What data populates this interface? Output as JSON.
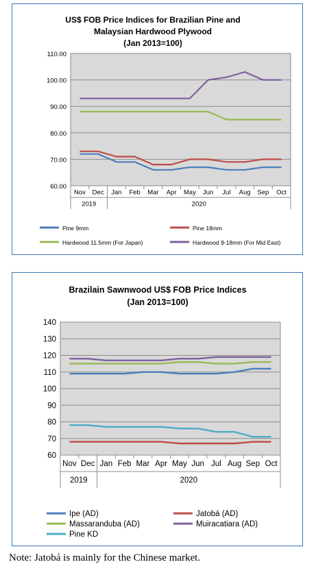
{
  "chart_data": [
    {
      "type": "line",
      "title": "US$ FOB Price Indices for Brazilian Pine and",
      "subtitle": "Malaysian Hardwood Plywood",
      "subtitle2": "(Jan 2013=100)",
      "categories": [
        "Nov",
        "Dec",
        "Jan",
        "Feb",
        "Mar",
        "Apr",
        "May",
        "Jun",
        "Jul",
        "Aug",
        "Sep",
        "Oct"
      ],
      "year_groups": [
        {
          "label": "2019",
          "span": 2
        },
        {
          "label": "2020",
          "span": 10
        }
      ],
      "ylim": [
        60,
        110
      ],
      "yticks": [
        "60.00",
        "70.00",
        "80.00",
        "90.00",
        "100.00",
        "110.00"
      ],
      "grid": true,
      "legend_position": "bottom",
      "series": [
        {
          "name": "Pine 9mm",
          "color": "#4a7ebb",
          "values": [
            72,
            72,
            69,
            69,
            66,
            66,
            67,
            67,
            66,
            66,
            67,
            67
          ]
        },
        {
          "name": "Pine 18mm",
          "color": "#be4b48",
          "values": [
            73,
            73,
            71,
            71,
            68,
            68,
            70,
            70,
            69,
            69,
            70,
            70
          ]
        },
        {
          "name": "Hardwood 11.5mm (For Japan)",
          "color": "#98b954",
          "values": [
            88,
            88,
            88,
            88,
            88,
            88,
            88,
            88,
            85,
            85,
            85,
            85
          ]
        },
        {
          "name": "Hardwood 9-18mm (For Mid East)",
          "color": "#7d60a0",
          "values": [
            93,
            93,
            93,
            93,
            93,
            93,
            93,
            100,
            101,
            103,
            100,
            100
          ]
        }
      ]
    },
    {
      "type": "line",
      "title": "Brazilain Sawnwood US$ FOB Price Indices",
      "subtitle": "(Jan 2013=100)",
      "categories": [
        "Nov",
        "Dec",
        "Jan",
        "Feb",
        "Mar",
        "Apr",
        "May",
        "Jun",
        "Jul",
        "Aug",
        "Sep",
        "Oct"
      ],
      "year_groups": [
        {
          "label": "2019",
          "span": 2
        },
        {
          "label": "2020",
          "span": 10
        }
      ],
      "ylim": [
        60,
        140
      ],
      "yticks": [
        "60",
        "70",
        "80",
        "90",
        "100",
        "110",
        "120",
        "130",
        "140"
      ],
      "grid": true,
      "legend_position": "bottom",
      "series": [
        {
          "name": "Ipe (AD)",
          "color": "#4a7ebb",
          "values": [
            109,
            109,
            109,
            109,
            110,
            110,
            109,
            109,
            109,
            110,
            112,
            112
          ]
        },
        {
          "name": "Jatobá (AD)",
          "color": "#be4b48",
          "values": [
            68,
            68,
            68,
            68,
            68,
            68,
            67,
            67,
            67,
            67,
            68,
            68
          ]
        },
        {
          "name": "Massaranduba (AD)",
          "color": "#98b954",
          "values": [
            115,
            115,
            115,
            115,
            115,
            115,
            116,
            116,
            115,
            115,
            116,
            116
          ]
        },
        {
          "name": "Muiracatiara (AD)",
          "color": "#7d60a0",
          "values": [
            118,
            118,
            117,
            117,
            117,
            117,
            118,
            118,
            119,
            119,
            119,
            119
          ]
        },
        {
          "name": "Pine KD",
          "color": "#4bacc6",
          "values": [
            78,
            78,
            77,
            77,
            77,
            77,
            76,
            76,
            74,
            74,
            71,
            71
          ]
        }
      ]
    }
  ],
  "note": "Note: Jatobá is mainly for the Chinese market."
}
